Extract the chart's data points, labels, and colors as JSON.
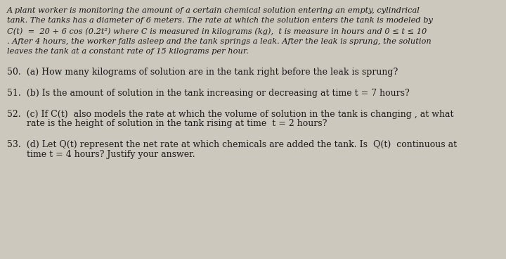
{
  "background_color": "#cdc8be",
  "text_color": "#1a1a1a",
  "line1": "A plant worker is monitoring the amount of a certain chemical solution entering an empty, cylindrical",
  "line2": "tank. The tanks has a diameter of 6 meters. The rate at which the solution enters the tank is modeled by",
  "line3": "C(t)  =  20 + 6 cos (0.2t²) where C is measured in kilograms (kg),  t is measure in hours and 0 ≤ t ≤ 10",
  "line4": ". After 4 hours, the worker falls asleep and the tank springs a leak. After the leak is sprung, the solution",
  "line5": "leaves the tank at a constant rate of 15 kilograms per hour.",
  "q50": "50.  (a) How many kilograms of solution are in the tank right before the leak is sprung?",
  "q51": "51.  (b) Is the amount of solution in the tank increasing or decreasing at time t = 7 hours?",
  "q52a": "52.  (c) If C(t)  also models the rate at which the volume of solution in the tank is changing , at what",
  "q52b": "       rate is the height of solution in the tank rising at time  t = 2 hours?",
  "q53a": "53.  (d) Let Q(t) represent the net rate at which chemicals are added the tank. Is  Q(t)  continuous at",
  "q53b": "       time t = 4 hours? Justify your answer.",
  "para_fs": 8.2,
  "q_fs": 9.0
}
